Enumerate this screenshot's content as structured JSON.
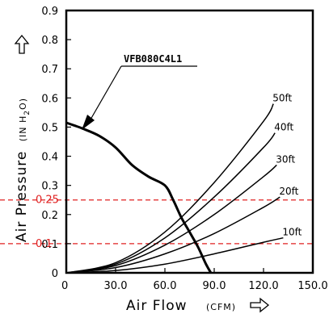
{
  "chart_data": {
    "type": "line",
    "model_label": "VFB080C4L1",
    "xaxis": {
      "label": "Air Flow",
      "unit": "(CFM)",
      "lim": [
        0,
        150
      ],
      "ticks": [
        0,
        30,
        60,
        90,
        120,
        150
      ],
      "tick_labels": [
        "0",
        "30.0",
        "60.0",
        "90.0",
        "120.0",
        "150.0"
      ]
    },
    "yaxis": {
      "label": "Air Pressure",
      "unit_prefix": "(IN H",
      "unit_sub": "2",
      "unit_suffix": "O)",
      "lim": [
        0,
        0.9
      ],
      "ticks": [
        0,
        0.1,
        0.2,
        0.3,
        0.4,
        0.5,
        0.6,
        0.7,
        0.8,
        0.9
      ],
      "tick_labels": [
        "0",
        "0.1",
        "0.2",
        "0.3",
        "0.4",
        "0.5",
        "0.6",
        "0.7",
        "0.8",
        "0.9"
      ]
    },
    "reference_lines": [
      {
        "y": 0.25,
        "label": "0.25",
        "color": "#e02020"
      },
      {
        "y": 0.1,
        "label": "0.1",
        "color": "#e02020"
      }
    ],
    "fan_curve": {
      "x": [
        0,
        5,
        10,
        20,
        30,
        40,
        50,
        60,
        65,
        70,
        75,
        80,
        85,
        88
      ],
      "y": [
        0.515,
        0.505,
        0.495,
        0.47,
        0.43,
        0.37,
        0.33,
        0.3,
        0.25,
        0.19,
        0.14,
        0.09,
        0.03,
        0
      ]
    },
    "system_curves": [
      {
        "label": "10ft",
        "x": [
          0,
          30,
          60,
          90,
          120,
          132
        ],
        "y": [
          0,
          0.008,
          0.03,
          0.065,
          0.105,
          0.12
        ]
      },
      {
        "label": "20ft",
        "x": [
          0,
          30,
          60,
          90,
          120,
          130
        ],
        "y": [
          0,
          0.018,
          0.065,
          0.135,
          0.225,
          0.26
        ]
      },
      {
        "label": "30ft",
        "x": [
          0,
          30,
          60,
          90,
          120,
          128
        ],
        "y": [
          0,
          0.025,
          0.095,
          0.2,
          0.33,
          0.37
        ]
      },
      {
        "label": "40ft",
        "x": [
          0,
          30,
          60,
          90,
          120,
          127
        ],
        "y": [
          0,
          0.03,
          0.12,
          0.26,
          0.43,
          0.48
        ]
      },
      {
        "label": "50ft",
        "x": [
          0,
          30,
          60,
          90,
          120,
          126
        ],
        "y": [
          0,
          0.035,
          0.14,
          0.31,
          0.52,
          0.58
        ]
      }
    ],
    "colors": {
      "axis": "#000000",
      "reference": "#e02020"
    }
  }
}
